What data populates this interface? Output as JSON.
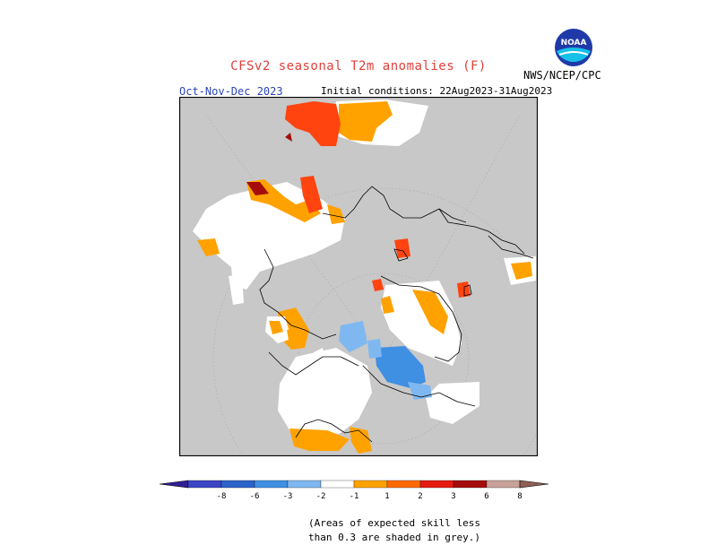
{
  "header": {
    "title": "CFSv2 seasonal T2m anomalies (F)",
    "season": "Oct-Nov-Dec 2023",
    "initial_conditions": "Initial conditions: 22Aug2023-31Aug2023",
    "agency": "NWS/NCEP/CPC",
    "logo_text": "NOAA"
  },
  "colorbar": {
    "labels": [
      "-8",
      "-6",
      "-3",
      "-2",
      "-1",
      "1",
      "2",
      "3",
      "6",
      "8"
    ],
    "colors": [
      "#2f1f96",
      "#3a46c4",
      "#2b63c9",
      "#3f8fe3",
      "#7fb8f0",
      "#ffffff",
      "#ffa200",
      "#ff6a00",
      "#e51b10",
      "#a50d0d",
      "#c8a198",
      "#8e5f55"
    ]
  },
  "colors": {
    "skill_grey": "#c8c8c8",
    "neutral": "#ffffff",
    "warm_light": "#ffa200",
    "warm_mid": "#ff4410",
    "warm_dark": "#a50d0d",
    "cool_light": "#7fb8f0",
    "cool_mid": "#3f8fe3"
  },
  "note": {
    "line1": "(Areas of expected skill less",
    "line2": "than 0.3 are shaded in grey.)"
  }
}
